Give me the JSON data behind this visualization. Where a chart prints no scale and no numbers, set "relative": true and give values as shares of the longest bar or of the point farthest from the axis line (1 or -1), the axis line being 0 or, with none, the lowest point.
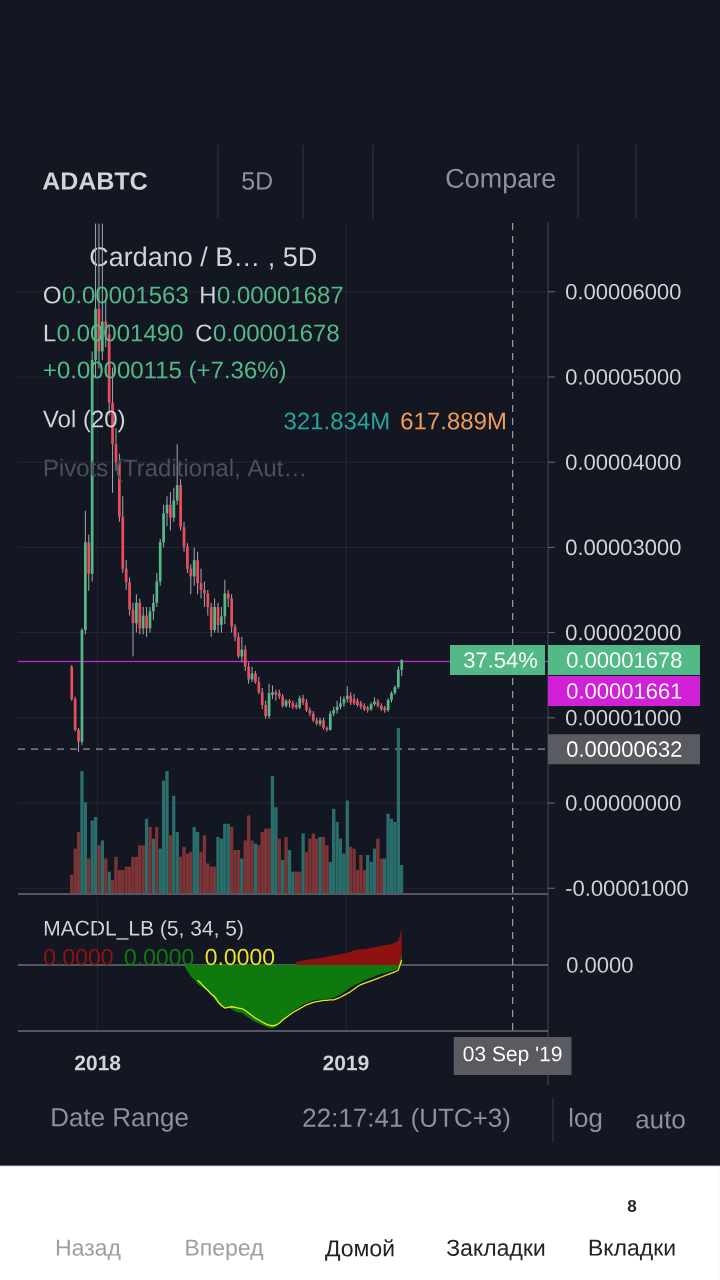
{
  "chart_data": [
    {
      "type": "candlestick",
      "title": "Cardano / B… , 5D",
      "x": [
        "2017-11-24",
        "2017-11-29",
        "2017-12-04",
        "2017-12-09",
        "2017-12-14",
        "2017-12-19",
        "2017-12-24",
        "2017-12-29",
        "2018-01-03",
        "2018-01-08",
        "2018-01-13",
        "2018-01-18",
        "2018-01-23",
        "2018-01-28",
        "2018-02-02",
        "2018-02-07",
        "2018-02-12",
        "2018-02-17",
        "2018-02-22",
        "2018-02-27",
        "2018-03-04",
        "2018-03-09",
        "2018-03-14",
        "2018-03-19",
        "2018-03-24",
        "2018-03-29",
        "2018-04-03",
        "2018-04-08",
        "2018-04-13",
        "2018-04-18",
        "2018-04-23",
        "2018-04-28",
        "2018-05-03",
        "2018-05-08",
        "2018-05-13",
        "2018-05-18",
        "2018-05-23",
        "2018-05-28",
        "2018-06-02",
        "2018-06-07",
        "2018-06-12",
        "2018-06-17",
        "2018-06-22",
        "2018-06-27",
        "2018-07-02",
        "2018-07-07",
        "2018-07-12",
        "2018-07-17",
        "2018-07-22",
        "2018-07-27",
        "2018-08-01",
        "2018-08-06",
        "2018-08-11",
        "2018-08-16",
        "2018-08-21",
        "2018-08-26",
        "2018-08-31",
        "2018-09-05",
        "2018-09-10",
        "2018-09-15",
        "2018-09-20",
        "2018-09-25",
        "2018-09-30",
        "2018-10-05",
        "2018-10-10",
        "2018-10-15",
        "2018-10-20",
        "2018-10-25",
        "2018-10-30",
        "2018-11-04",
        "2018-11-09",
        "2018-11-14",
        "2018-11-19",
        "2018-11-24",
        "2018-11-29",
        "2018-12-04",
        "2018-12-09",
        "2018-12-14",
        "2018-12-19",
        "2018-12-24",
        "2018-12-29",
        "2019-01-03",
        "2019-01-08",
        "2019-01-13",
        "2019-01-18",
        "2019-01-23",
        "2019-01-28",
        "2019-02-02",
        "2019-02-07",
        "2019-02-12",
        "2019-02-17",
        "2019-02-22",
        "2019-02-27",
        "2019-03-04",
        "2019-03-09",
        "2019-03-14",
        "2019-03-19",
        "2019-03-24"
      ],
      "ohlc": [
        [
          1.6e-05,
          1.62e-05,
          1.2e-05,
          1.22e-05
        ],
        [
          1.22e-05,
          1.25e-05,
          8.4e-06,
          8.6e-06
        ],
        [
          8.6e-06,
          8.8e-06,
          6e-06,
          7.2e-06
        ],
        [
          7.2e-06,
          2.05e-05,
          6.8e-06,
          2.03e-05
        ],
        [
          2.03e-05,
          3.43e-05,
          1.98e-05,
          3.06e-05
        ],
        [
          3.06e-05,
          3.15e-05,
          2.49e-05,
          2.69e-05
        ],
        [
          2.69e-05,
          5.3e-05,
          2.6e-05,
          5.2e-05
        ],
        [
          5.2e-05,
          6.8e-05,
          5e-05,
          5.8e-05
        ],
        [
          5.8e-05,
          6.8e-05,
          5.1e-05,
          5.3e-05
        ],
        [
          5.3e-05,
          6.8e-05,
          5.2e-05,
          5.65e-05
        ],
        [
          5.65e-05,
          5.9e-05,
          5.35e-05,
          5.5e-05
        ],
        [
          5.5e-05,
          5.6e-05,
          4.55e-05,
          4.7e-05
        ],
        [
          4.7e-05,
          5.11e-05,
          3.64e-05,
          4.21e-05
        ],
        [
          4.21e-05,
          4.4e-05,
          3.9e-05,
          4e-05
        ],
        [
          4e-05,
          4.1e-05,
          3.3e-05,
          3.36e-05
        ],
        [
          3.36e-05,
          3.6e-05,
          2.7e-05,
          2.75e-05
        ],
        [
          2.75e-05,
          2.85e-05,
          2.5e-05,
          2.59e-05
        ],
        [
          2.59e-05,
          2.65e-05,
          2.2e-05,
          2.27e-05
        ],
        [
          2.27e-05,
          2.35e-05,
          1.72e-05,
          2.11e-05
        ],
        [
          2.11e-05,
          2.45e-05,
          2e-05,
          2.35e-05
        ],
        [
          2.35e-05,
          2.4e-05,
          1.98e-05,
          2.05e-05
        ],
        [
          2.05e-05,
          2.3e-05,
          1.98e-05,
          2.2e-05
        ],
        [
          2.2e-05,
          2.3e-05,
          1.95e-05,
          2.05e-05
        ],
        [
          2.05e-05,
          2.3e-05,
          2e-05,
          2.25e-05
        ],
        [
          2.25e-05,
          2.45e-05,
          2.15e-05,
          2.35e-05
        ],
        [
          2.35e-05,
          2.7e-05,
          2.3e-05,
          2.6e-05
        ],
        [
          2.6e-05,
          3.1e-05,
          2.55e-05,
          3.06e-05
        ],
        [
          3.06e-05,
          3.5e-05,
          3e-05,
          3.4e-05
        ],
        [
          3.4e-05,
          3.6e-05,
          3.25e-05,
          3.5e-05
        ],
        [
          3.5e-05,
          3.65e-05,
          3.2e-05,
          3.35e-05
        ],
        [
          3.35e-05,
          3.7e-05,
          3.3e-05,
          3.55e-05
        ],
        [
          3.55e-05,
          4.21e-05,
          3.5e-05,
          3.73e-05
        ],
        [
          3.73e-05,
          3.8e-05,
          3.2e-05,
          3.24e-05
        ],
        [
          3.24e-05,
          3.3e-05,
          2.95e-05,
          3.01e-05
        ],
        [
          3.01e-05,
          3.05e-05,
          2.7e-05,
          2.75e-05
        ],
        [
          2.75e-05,
          2.8e-05,
          2.45e-05,
          2.66e-05
        ],
        [
          2.66e-05,
          3e-05,
          2.55e-05,
          2.85e-05
        ],
        [
          2.85e-05,
          2.95e-05,
          2.45e-05,
          2.58e-05
        ],
        [
          2.58e-05,
          2.75e-05,
          2.4e-05,
          2.5e-05
        ],
        [
          2.5e-05,
          2.6e-05,
          2.3e-05,
          2.46e-05
        ],
        [
          2.46e-05,
          2.5e-05,
          2.2e-05,
          2.3e-05
        ],
        [
          2.3e-05,
          2.35e-05,
          1.95e-05,
          2.03e-05
        ],
        [
          2.03e-05,
          2.4e-05,
          2e-05,
          2.3e-05
        ],
        [
          2.3e-05,
          2.35e-05,
          2e-05,
          2.09e-05
        ],
        [
          2.09e-05,
          2.3e-05,
          2e-05,
          2.19e-05
        ],
        [
          2.19e-05,
          2.62e-05,
          2.1e-05,
          2.46e-05
        ],
        [
          2.46e-05,
          2.5e-05,
          2.3e-05,
          2.4e-05
        ],
        [
          2.4e-05,
          2.45e-05,
          2e-05,
          2.07e-05
        ],
        [
          2.07e-05,
          2.1e-05,
          1.9e-05,
          1.95e-05
        ],
        [
          1.95e-05,
          2e-05,
          1.7e-05,
          1.72e-05
        ],
        [
          1.72e-05,
          1.95e-05,
          1.65e-05,
          1.8e-05
        ],
        [
          1.8e-05,
          1.85e-05,
          1.55e-05,
          1.6e-05
        ],
        [
          1.6e-05,
          1.65e-05,
          1.4e-05,
          1.45e-05
        ],
        [
          1.45e-05,
          1.6e-05,
          1.42e-05,
          1.52e-05
        ],
        [
          1.52e-05,
          1.55e-05,
          1.4e-05,
          1.42e-05
        ],
        [
          1.42e-05,
          1.48e-05,
          1.28e-05,
          1.3e-05
        ],
        [
          1.3e-05,
          1.35e-05,
          1.1e-05,
          1.15e-05
        ],
        [
          1.15e-05,
          1.2e-05,
          9.9e-06,
          1.02e-05
        ],
        [
          1.02e-05,
          1.4e-05,
          9.9e-06,
          1.29e-05
        ],
        [
          1.27e-05,
          1.38e-05,
          1.22e-05,
          1.3e-05
        ],
        [
          1.3e-05,
          1.33e-05,
          1.2e-05,
          1.27e-05
        ],
        [
          1.29e-05,
          1.33e-05,
          1.22e-05,
          1.25e-05
        ],
        [
          1.25e-05,
          1.28e-05,
          1.12e-05,
          1.14e-05
        ],
        [
          1.14e-05,
          1.22e-05,
          1.12e-05,
          1.2e-05
        ],
        [
          1.2e-05,
          1.22e-05,
          1.12e-05,
          1.17e-05
        ],
        [
          1.17e-05,
          1.2e-05,
          1.1e-05,
          1.13e-05
        ],
        [
          1.15e-05,
          1.18e-05,
          1.1e-05,
          1.12e-05
        ],
        [
          1.12e-05,
          1.26e-05,
          1.1e-05,
          1.23e-05
        ],
        [
          1.23e-05,
          1.27e-05,
          1.15e-05,
          1.18e-05
        ],
        [
          1.18e-05,
          1.22e-05,
          1.07e-05,
          1.09e-05
        ],
        [
          1.09e-05,
          1.12e-05,
          1.02e-05,
          1.05e-05
        ],
        [
          1.05e-05,
          1.08e-05,
          9.5e-06,
          9.7e-06
        ],
        [
          9.7e-06,
          1e-05,
          9.1e-06,
          9.3e-06
        ],
        [
          9.3e-06,
          1e-05,
          9e-06,
          9.7e-06
        ],
        [
          9.7e-06,
          1e-05,
          8.6e-06,
          8.8e-06
        ],
        [
          8.8e-06,
          9e-06,
          8.4e-06,
          8.6e-06
        ],
        [
          8.6e-06,
          1.08e-05,
          8.5e-06,
          1.05e-05
        ],
        [
          1.05e-05,
          1.13e-05,
          1.02e-05,
          1.09e-05
        ],
        [
          1.09e-05,
          1.2e-05,
          1.05e-05,
          1.13e-05
        ],
        [
          1.13e-05,
          1.25e-05,
          1.1e-05,
          1.17e-05
        ],
        [
          1.17e-05,
          1.25e-05,
          1.13e-05,
          1.22e-05
        ],
        [
          1.22e-05,
          1.37e-05,
          1.18e-05,
          1.26e-05
        ],
        [
          1.26e-05,
          1.3e-05,
          1.15e-05,
          1.18e-05
        ],
        [
          1.22e-05,
          1.28e-05,
          1.15e-05,
          1.17e-05
        ],
        [
          1.2e-05,
          1.23e-05,
          1.13e-05,
          1.15e-05
        ],
        [
          1.17e-05,
          1.2e-05,
          1.1e-05,
          1.13e-05
        ],
        [
          1.14e-05,
          1.17e-05,
          1.08e-05,
          1.1e-05
        ],
        [
          1.12e-05,
          1.14e-05,
          1.06e-05,
          1.09e-05
        ],
        [
          1.1e-05,
          1.18e-05,
          1.08e-05,
          1.16e-05
        ],
        [
          1.16e-05,
          1.24e-05,
          1.14e-05,
          1.19e-05
        ],
        [
          1.19e-05,
          1.22e-05,
          1.12e-05,
          1.14e-05
        ],
        [
          1.14e-05,
          1.17e-05,
          1.08e-05,
          1.1e-05
        ],
        [
          1.12e-05,
          1.14e-05,
          1.06e-05,
          1.09e-05
        ],
        [
          1.09e-05,
          1.23e-05,
          1.07e-05,
          1.21e-05
        ],
        [
          1.21e-05,
          1.31e-05,
          1.18e-05,
          1.29e-05
        ],
        [
          1.29e-05,
          1.38e-05,
          1.27e-05,
          1.36e-05
        ],
        [
          1.36e-05,
          1.6e-05,
          1.34e-05,
          1.563e-05
        ],
        [
          1.563e-05,
          1.687e-05,
          1.49e-05,
          1.678e-05
        ]
      ],
      "colors": [
        "#eb4d5c",
        "#eb4d5c",
        "#eb4d5c",
        "#53b987",
        "#53b987",
        "#eb4d5c",
        "#53b987",
        "#53b987",
        "#eb4d5c",
        "#53b987",
        "#eb4d5c",
        "#eb4d5c",
        "#eb4d5c",
        "#eb4d5c",
        "#eb4d5c",
        "#eb4d5c",
        "#eb4d5c",
        "#eb4d5c",
        "#eb4d5c",
        "#53b987",
        "#eb4d5c",
        "#53b987",
        "#eb4d5c",
        "#53b987",
        "#53b987",
        "#53b987",
        "#53b987",
        "#53b987",
        "#53b987",
        "#eb4d5c",
        "#53b987",
        "#53b987",
        "#eb4d5c",
        "#eb4d5c",
        "#eb4d5c",
        "#eb4d5c",
        "#53b987",
        "#eb4d5c",
        "#eb4d5c",
        "#eb4d5c",
        "#eb4d5c",
        "#eb4d5c",
        "#53b987",
        "#eb4d5c",
        "#53b987",
        "#53b987",
        "#eb4d5c",
        "#eb4d5c",
        "#eb4d5c",
        "#eb4d5c",
        "#53b987",
        "#eb4d5c",
        "#eb4d5c",
        "#53b987",
        "#eb4d5c",
        "#eb4d5c",
        "#eb4d5c",
        "#eb4d5c",
        "#53b987",
        "#53b987",
        "#eb4d5c",
        "#eb4d5c",
        "#eb4d5c",
        "#53b987",
        "#eb4d5c",
        "#eb4d5c",
        "#eb4d5c",
        "#53b987",
        "#eb4d5c",
        "#eb4d5c",
        "#eb4d5c",
        "#eb4d5c",
        "#eb4d5c",
        "#53b987",
        "#eb4d5c",
        "#eb4d5c",
        "#53b987",
        "#53b987",
        "#53b987",
        "#53b987",
        "#53b987",
        "#53b987",
        "#eb4d5c",
        "#eb4d5c",
        "#eb4d5c",
        "#eb4d5c",
        "#eb4d5c",
        "#eb4d5c",
        "#53b987",
        "#53b987",
        "#eb4d5c",
        "#eb4d5c",
        "#eb4d5c",
        "#53b987",
        "#53b987",
        "#53b987",
        "#53b987",
        "#53b987"
      ],
      "xlim": [
        "2017-09-06",
        "2019-10-25"
      ],
      "ylim": [
        -1.056e-05,
        6.819e-05
      ],
      "xticks": [
        "2018",
        "2019"
      ],
      "yticks": [
        {
          "value": 6e-05,
          "label": "0.00006000"
        },
        {
          "value": 5e-05,
          "label": "0.00005000"
        },
        {
          "value": 4e-05,
          "label": "0.00004000"
        },
        {
          "value": 3e-05,
          "label": "0.00003000"
        },
        {
          "value": 2e-05,
          "label": "0.00002000"
        },
        {
          "value": 1e-05,
          "label": "0.00001000"
        },
        {
          "value": 0,
          "label": "0.00000000"
        },
        {
          "value": -1e-05,
          "label": "-0.00001000"
        }
      ],
      "tick_labels": "y",
      "grid": true,
      "ref_lines": [
        {
          "axis": "y",
          "value": 1.661e-05,
          "label": "0.00001661",
          "color": "#d020d8"
        },
        {
          "axis": "y",
          "value": 6.32e-06,
          "label": "0.00000632",
          "color": "#9598a1",
          "line_style": "dashed"
        },
        {
          "axis": "x",
          "value": "2019-09-03",
          "color": "#9598a1",
          "line_style": "dashed"
        }
      ],
      "annotations": [
        "O",
        "0.00001563",
        "H",
        "0.00001687",
        "L",
        "0.00001490",
        "C",
        "0.00001678",
        "+0.00000115 (+7.36%)",
        "Pivots (Traditional, Aut…",
        "0.00001678",
        "37.54%"
      ]
    },
    {
      "type": "bar",
      "title": "Vol (20)",
      "x": [
        "2017-11-24",
        "2017-11-29",
        "2017-12-04",
        "2017-12-09",
        "2017-12-14",
        "2017-12-19",
        "2017-12-24",
        "2017-12-29",
        "2018-01-03",
        "2018-01-08",
        "2018-01-13",
        "2018-01-18",
        "2018-01-23",
        "2018-01-28",
        "2018-02-02",
        "2018-02-07",
        "2018-02-12",
        "2018-02-17",
        "2018-02-22",
        "2018-02-27",
        "2018-03-04",
        "2018-03-09",
        "2018-03-14",
        "2018-03-19",
        "2018-03-24",
        "2018-03-29",
        "2018-04-03",
        "2018-04-08",
        "2018-04-13",
        "2018-04-18",
        "2018-04-23",
        "2018-04-28",
        "2018-05-03",
        "2018-05-08",
        "2018-05-13",
        "2018-05-18",
        "2018-05-23",
        "2018-05-28",
        "2018-06-02",
        "2018-06-07",
        "2018-06-12",
        "2018-06-17",
        "2018-06-22",
        "2018-06-27",
        "2018-07-02",
        "2018-07-07",
        "2018-07-12",
        "2018-07-17",
        "2018-07-22",
        "2018-07-27",
        "2018-08-01",
        "2018-08-06",
        "2018-08-11",
        "2018-08-16",
        "2018-08-21",
        "2018-08-26",
        "2018-08-31",
        "2018-09-05",
        "2018-09-10",
        "2018-09-15",
        "2018-09-20",
        "2018-09-25",
        "2018-09-30",
        "2018-10-05",
        "2018-10-10",
        "2018-10-15",
        "2018-10-20",
        "2018-10-25",
        "2018-10-30",
        "2018-11-04",
        "2018-11-09",
        "2018-11-14",
        "2018-11-19",
        "2018-11-24",
        "2018-11-29",
        "2018-12-04",
        "2018-12-09",
        "2018-12-14",
        "2018-12-19",
        "2018-12-24",
        "2018-12-29",
        "2019-01-03",
        "2019-01-08",
        "2019-01-13",
        "2019-01-18",
        "2019-01-23",
        "2019-01-28",
        "2019-02-02",
        "2019-02-07",
        "2019-02-12",
        "2019-02-17",
        "2019-02-22",
        "2019-02-27",
        "2019-03-04",
        "2019-03-09",
        "2019-03-14",
        "2019-03-19",
        "2019-03-24"
      ],
      "values": [
        0.11,
        0.27,
        0.37,
        0.74,
        0.55,
        0.21,
        0.44,
        0.46,
        0.29,
        0.32,
        0.21,
        0.13,
        0.08,
        0.22,
        0.14,
        0.14,
        0.16,
        0.16,
        0.22,
        0.22,
        0.29,
        0.29,
        0.45,
        0.4,
        0.33,
        0.4,
        0.27,
        0.68,
        0.74,
        0.35,
        0.59,
        0.37,
        0.22,
        0.28,
        0.24,
        0.25,
        0.4,
        0.37,
        0.25,
        0.35,
        0.18,
        0.16,
        0.16,
        0.34,
        0.33,
        0.42,
        0.42,
        0.4,
        0.26,
        0.26,
        0.21,
        0.32,
        0.47,
        0.32,
        0.3,
        0.29,
        0.37,
        0.39,
        0.39,
        0.71,
        0.52,
        0.33,
        0.2,
        0.34,
        0.26,
        0.13,
        0.13,
        0.13,
        0.36,
        0.25,
        0.33,
        0.36,
        0.33,
        0.34,
        0.34,
        0.29,
        0.19,
        0.51,
        0.43,
        0.33,
        0.24,
        0.56,
        0.28,
        0.27,
        0.14,
        0.23,
        0.14,
        0.23,
        0.19,
        0.27,
        0.33,
        0.21,
        0.21,
        0.48,
        0.45,
        0.43,
        1,
        0.17
      ],
      "colors": [
        "#7c3437",
        "#7c3437",
        "#7c3437",
        "#2a6e6b",
        "#2a6e6b",
        "#7c3437",
        "#2a6e6b",
        "#2a6e6b",
        "#7c3437",
        "#2a6e6b",
        "#7c3437",
        "#2a6e6b",
        "#7c3437",
        "#7c3437",
        "#7c3437",
        "#7c3437",
        "#7c3437",
        "#7c3437",
        "#7c3437",
        "#7c3437",
        "#7c3437",
        "#7c3437",
        "#2a6e6b",
        "#7c3437",
        "#2a6e6b",
        "#7c3437",
        "#2a6e6b",
        "#2a6e6b",
        "#2a6e6b",
        "#7c3437",
        "#2a6e6b",
        "#2a6e6b",
        "#7c3437",
        "#7c3437",
        "#7c3437",
        "#7c3437",
        "#2a6e6b",
        "#2a6e6b",
        "#7c3437",
        "#7c3437",
        "#7c3437",
        "#7c3437",
        "#7c3437",
        "#2a6e6b",
        "#2a6e6b",
        "#2a6e6b",
        "#2a6e6b",
        "#7c3437",
        "#7c3437",
        "#7c3437",
        "#2a6e6b",
        "#7c3437",
        "#7c3437",
        "#7c3437",
        "#2a6e6b",
        "#7c3437",
        "#7c3437",
        "#7c3437",
        "#7c3437",
        "#2a6e6b",
        "#2a6e6b",
        "#7c3437",
        "#2a6e6b",
        "#7c3437",
        "#2a6e6b",
        "#2a6e6b",
        "#7c3437",
        "#7c3437",
        "#2a6e6b",
        "#7c3437",
        "#7c3437",
        "#7c3437",
        "#7c3437",
        "#2a6e6b",
        "#7c3437",
        "#7c3437",
        "#2a6e6b",
        "#2a6e6b",
        "#2a6e6b",
        "#2a6e6b",
        "#2a6e6b",
        "#2a6e6b",
        "#7c3437",
        "#7c3437",
        "#7c3437",
        "#7c3437",
        "#7c3437",
        "#2a6e6b",
        "#2a6e6b",
        "#2a6e6b",
        "#7c3437",
        "#7c3437",
        "#2a6e6b",
        "#2a6e6b",
        "#2a6e6b",
        "#2a6e6b",
        "#2a6e6b",
        "#2a6e6b"
      ],
      "relative": true,
      "xlim": [
        "2017-09-06",
        "2019-10-25"
      ],
      "tick_labels": false,
      "annotations": [
        "321.834M",
        "617.889M"
      ]
    },
    {
      "type": "area",
      "title": "MACDL_LB (5, 34, 5)",
      "series": [
        {
          "name": "0.0000",
          "color": "#8e1212",
          "type": "area",
          "x": [
            "2018-10-20",
            "2018-10-25",
            "2018-10-30",
            "2018-11-04",
            "2018-11-09",
            "2018-11-14",
            "2018-11-19",
            "2018-11-24",
            "2018-11-29",
            "2018-12-04",
            "2018-12-09",
            "2018-12-14",
            "2018-12-19",
            "2018-12-24",
            "2018-12-29",
            "2019-01-03",
            "2019-01-08",
            "2019-01-13",
            "2019-01-18",
            "2019-01-23",
            "2019-01-28",
            "2019-02-02",
            "2019-02-07",
            "2019-02-12",
            "2019-02-17",
            "2019-02-22",
            "2019-02-27",
            "2019-03-04",
            "2019-03-09",
            "2019-03-14",
            "2019-03-19",
            "2019-03-24"
          ],
          "values": [
            0.05,
            0.06,
            0.07,
            0.08,
            0.09,
            0.1,
            0.1,
            0.11,
            0.12,
            0.13,
            0.14,
            0.15,
            0.16,
            0.17,
            0.18,
            0.19,
            0.21,
            0.23,
            0.24,
            0.25,
            0.25,
            0.26,
            0.27,
            0.28,
            0.29,
            0.3,
            0.31,
            0.32,
            0.33,
            0.35,
            0.38,
            0.58
          ]
        },
        {
          "name": "0.0000",
          "color": "#0e7a0e",
          "type": "area",
          "x": [
            "2018-05-08",
            "2018-05-13",
            "2018-05-18",
            "2018-05-23",
            "2018-05-28",
            "2018-06-02",
            "2018-06-07",
            "2018-06-12",
            "2018-06-17",
            "2018-06-22",
            "2018-06-27",
            "2018-07-02",
            "2018-07-07",
            "2018-07-12",
            "2018-07-17",
            "2018-07-22",
            "2018-07-27",
            "2018-08-01",
            "2018-08-06",
            "2018-08-11",
            "2018-08-16",
            "2018-08-21",
            "2018-08-26",
            "2018-08-31",
            "2018-09-05",
            "2018-09-10",
            "2018-09-15",
            "2018-09-20",
            "2018-09-25",
            "2018-09-30",
            "2018-10-05",
            "2018-10-10",
            "2018-10-15",
            "2018-10-20",
            "2018-10-25",
            "2018-10-30",
            "2018-11-04",
            "2018-11-09",
            "2018-11-14",
            "2018-11-19",
            "2018-11-24",
            "2018-11-29",
            "2018-12-04",
            "2018-12-09",
            "2018-12-14",
            "2018-12-19",
            "2018-12-24",
            "2018-12-29",
            "2019-01-03",
            "2019-01-08",
            "2019-01-13",
            "2019-01-18",
            "2019-01-23",
            "2019-01-28",
            "2019-02-02",
            "2019-02-07",
            "2019-02-12",
            "2019-02-17",
            "2019-02-22",
            "2019-02-27",
            "2019-03-04",
            "2019-03-09",
            "2019-03-14",
            "2019-03-19",
            "2019-03-24"
          ],
          "values": [
            0,
            -0.1,
            -0.18,
            -0.23,
            -0.3,
            -0.34,
            -0.38,
            -0.42,
            -0.48,
            -0.55,
            -0.6,
            -0.66,
            -0.68,
            -0.68,
            -0.7,
            -0.73,
            -0.75,
            -0.76,
            -0.8,
            -0.83,
            -0.87,
            -0.9,
            -0.92,
            -0.95,
            -0.97,
            -0.99,
            -1,
            -0.98,
            -0.93,
            -0.87,
            -0.82,
            -0.77,
            -0.73,
            -0.69,
            -0.66,
            -0.63,
            -0.6,
            -0.58,
            -0.56,
            -0.55,
            -0.55,
            -0.54,
            -0.54,
            -0.53,
            -0.52,
            -0.49,
            -0.47,
            -0.43,
            -0.39,
            -0.35,
            -0.32,
            -0.3,
            -0.27,
            -0.24,
            -0.22,
            -0.2,
            -0.18,
            -0.16,
            -0.14,
            -0.13,
            -0.11,
            -0.1,
            -0.08,
            -0.05,
            0.18
          ]
        },
        {
          "name": "0.0000",
          "color": "#e8e81e",
          "type": "line",
          "x": [
            "2018-05-28",
            "2018-06-02",
            "2018-06-07",
            "2018-06-12",
            "2018-06-17",
            "2018-06-22",
            "2018-06-27",
            "2018-07-02",
            "2018-07-07",
            "2018-07-12",
            "2018-07-17",
            "2018-07-22",
            "2018-07-27",
            "2018-08-01",
            "2018-08-06",
            "2018-08-11",
            "2018-08-16",
            "2018-08-21",
            "2018-08-26",
            "2018-08-31",
            "2018-09-05",
            "2018-09-10",
            "2018-09-15",
            "2018-09-20",
            "2018-09-25",
            "2018-09-30",
            "2018-10-05",
            "2018-10-10",
            "2018-10-15",
            "2018-10-20",
            "2018-10-25",
            "2018-10-30",
            "2018-11-04",
            "2018-11-09",
            "2018-11-14",
            "2018-11-19",
            "2018-11-24",
            "2018-11-29",
            "2018-12-04",
            "2018-12-09",
            "2018-12-14",
            "2018-12-19",
            "2018-12-24",
            "2018-12-29",
            "2019-01-03",
            "2019-01-08",
            "2019-01-13",
            "2019-01-18",
            "2019-01-23",
            "2019-01-28",
            "2019-02-02",
            "2019-02-07",
            "2019-02-12",
            "2019-02-17",
            "2019-02-22",
            "2019-02-27",
            "2019-03-04",
            "2019-03-09",
            "2019-03-14",
            "2019-03-19",
            "2019-03-24"
          ],
          "values": [
            -0.24,
            -0.29,
            -0.35,
            -0.4,
            -0.46,
            -0.5,
            -0.58,
            -0.64,
            -0.68,
            -0.67,
            -0.66,
            -0.67,
            -0.68,
            -0.69,
            -0.72,
            -0.76,
            -0.8,
            -0.84,
            -0.87,
            -0.9,
            -0.93,
            -0.95,
            -0.96,
            -0.95,
            -0.92,
            -0.87,
            -0.83,
            -0.79,
            -0.75,
            -0.72,
            -0.69,
            -0.66,
            -0.63,
            -0.61,
            -0.59,
            -0.58,
            -0.57,
            -0.56,
            -0.56,
            -0.55,
            -0.55,
            -0.53,
            -0.51,
            -0.48,
            -0.45,
            -0.42,
            -0.38,
            -0.34,
            -0.31,
            -0.29,
            -0.27,
            -0.25,
            -0.23,
            -0.21,
            -0.19,
            -0.17,
            -0.15,
            -0.13,
            -0.11,
            -0.08,
            0.08
          ]
        }
      ],
      "relative": true,
      "xlim": [
        "2017-09-06",
        "2019-10-25"
      ],
      "xticks": [
        "2018",
        "2019"
      ],
      "tick_labels": "x",
      "grid": "x",
      "ref_lines": [
        {
          "axis": "y",
          "value": 0,
          "label": "0.0000"
        },
        {
          "axis": "x",
          "value": "2019-09-03",
          "label": "03 Sep '19",
          "color": "#9598a1",
          "line_style": "dashed"
        }
      ]
    },
    {
      "type": "other",
      "title": "ADABTC",
      "annotations": [
        "5D",
        "Compare",
        "Date Range",
        "22:17:41 (UTC+3)",
        "log",
        "auto",
        "Назад",
        "Вперед",
        "Домой",
        "Закладки",
        "Вкладки",
        "8"
      ]
    }
  ]
}
